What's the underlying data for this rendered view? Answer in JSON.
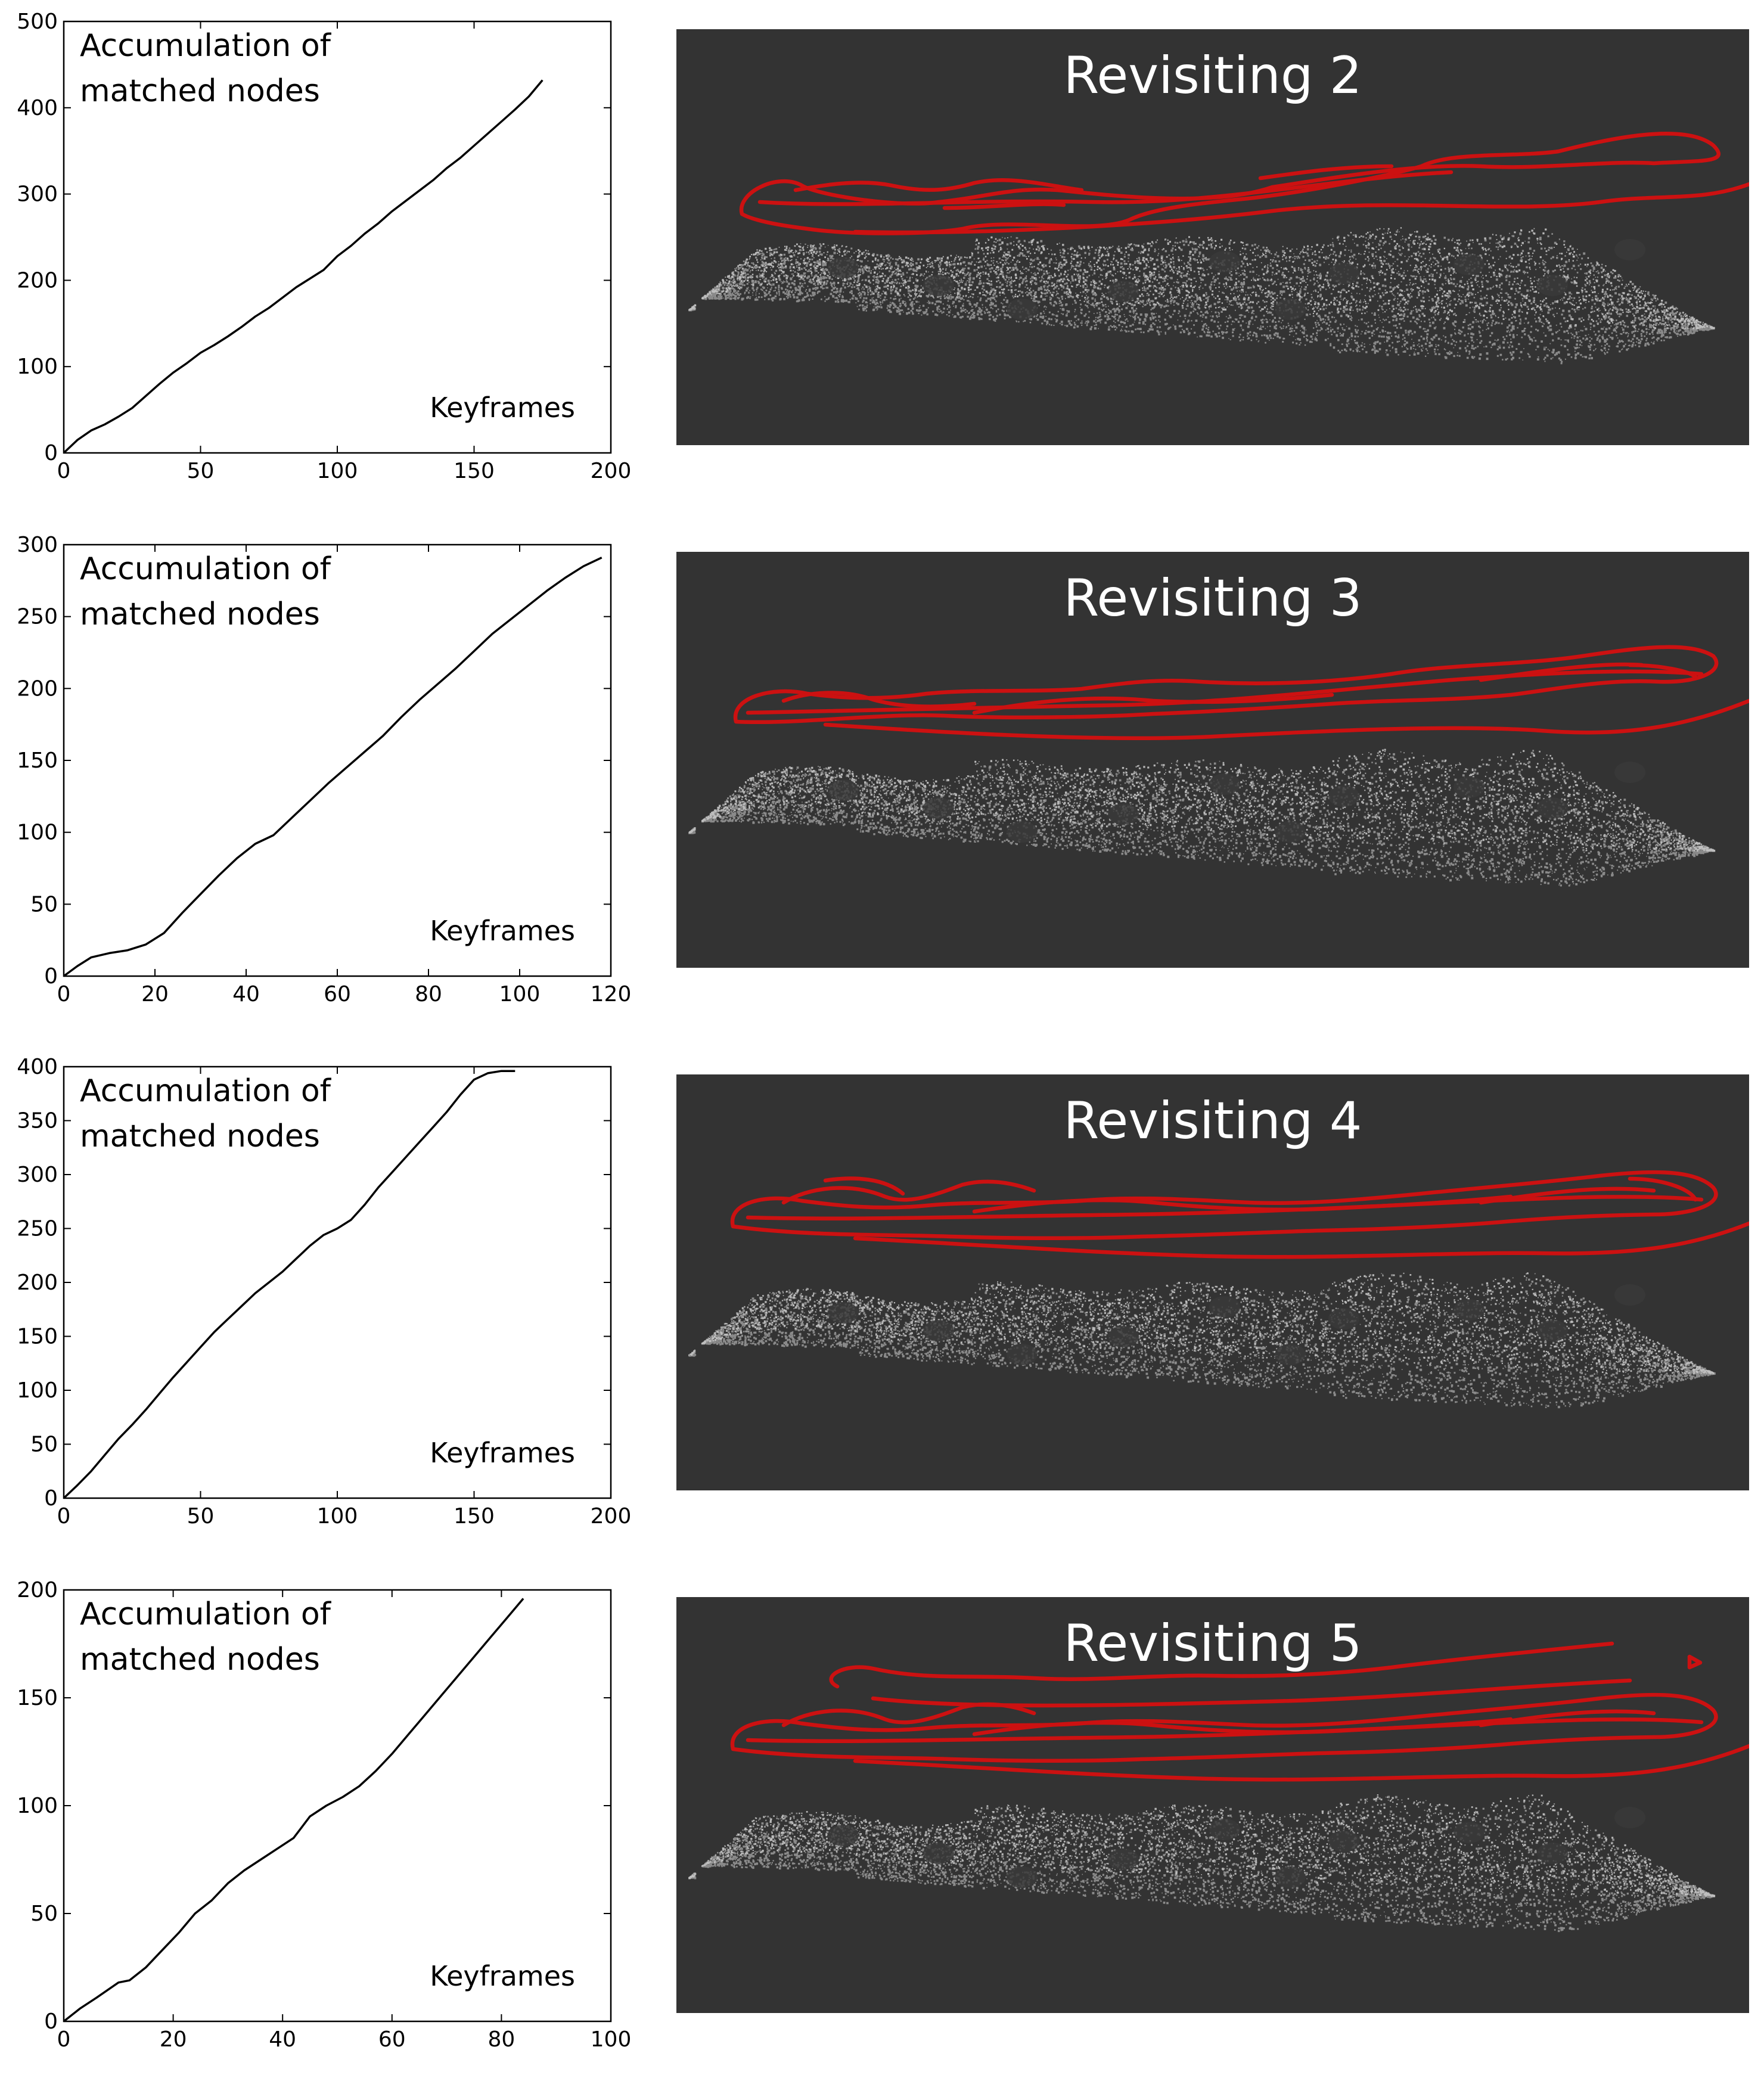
{
  "chart_data": [
    {
      "type": "line",
      "annotation_line1": "Accumulation of",
      "annotation_line2": "matched nodes",
      "xlabel": "Keyframes",
      "xlim": [
        0,
        200
      ],
      "ylim": [
        0,
        500
      ],
      "xticks": [
        0,
        50,
        100,
        150,
        200
      ],
      "yticks": [
        0,
        100,
        200,
        300,
        400,
        500
      ],
      "series": [
        {
          "color": "#000000",
          "x": [
            0,
            5,
            10,
            15,
            20,
            25,
            30,
            35,
            40,
            45,
            50,
            55,
            60,
            65,
            70,
            75,
            80,
            85,
            90,
            95,
            100,
            105,
            110,
            115,
            120,
            125,
            130,
            135,
            140,
            145,
            150,
            155,
            160,
            165,
            170,
            175
          ],
          "y": [
            0,
            15,
            26,
            33,
            42,
            52,
            66,
            80,
            93,
            104,
            116,
            125,
            135,
            146,
            158,
            168,
            180,
            192,
            202,
            212,
            228,
            240,
            254,
            266,
            280,
            292,
            304,
            316,
            330,
            342,
            356,
            370,
            384,
            398,
            413,
            432
          ]
        }
      ]
    },
    {
      "type": "line",
      "annotation_line1": "Accumulation of",
      "annotation_line2": "matched nodes",
      "xlabel": "Keyframes",
      "xlim": [
        0,
        120
      ],
      "ylim": [
        0,
        300
      ],
      "xticks": [
        0,
        20,
        40,
        60,
        80,
        100,
        120
      ],
      "yticks": [
        0,
        50,
        100,
        150,
        200,
        250,
        300
      ],
      "series": [
        {
          "color": "#000000",
          "x": [
            0,
            3,
            6,
            10,
            14,
            18,
            22,
            26,
            30,
            34,
            38,
            42,
            46,
            50,
            54,
            58,
            62,
            66,
            70,
            74,
            78,
            82,
            86,
            90,
            94,
            98,
            102,
            106,
            110,
            114,
            118
          ],
          "y": [
            0,
            7,
            13,
            16,
            18,
            22,
            30,
            44,
            57,
            70,
            82,
            92,
            98,
            110,
            122,
            134,
            145,
            156,
            167,
            180,
            192,
            203,
            214,
            226,
            238,
            248,
            258,
            268,
            277,
            285,
            291
          ]
        }
      ]
    },
    {
      "type": "line",
      "annotation_line1": "Accumulation of",
      "annotation_line2": "matched nodes",
      "xlabel": "Keyframes",
      "xlim": [
        0,
        200
      ],
      "ylim": [
        0,
        400
      ],
      "xticks": [
        0,
        50,
        100,
        150,
        200
      ],
      "yticks": [
        0,
        50,
        100,
        150,
        200,
        250,
        300,
        350,
        400
      ],
      "series": [
        {
          "color": "#000000",
          "x": [
            0,
            5,
            10,
            15,
            20,
            25,
            30,
            35,
            40,
            45,
            50,
            55,
            60,
            65,
            70,
            75,
            80,
            85,
            90,
            95,
            100,
            105,
            110,
            115,
            120,
            125,
            130,
            135,
            140,
            145,
            150,
            155,
            160,
            165
          ],
          "y": [
            0,
            12,
            25,
            40,
            55,
            68,
            82,
            97,
            112,
            126,
            140,
            154,
            166,
            178,
            190,
            200,
            210,
            222,
            234,
            244,
            250,
            258,
            272,
            288,
            302,
            316,
            330,
            344,
            358,
            374,
            388,
            394,
            396,
            396
          ]
        }
      ]
    },
    {
      "type": "line",
      "annotation_line1": "Accumulation of",
      "annotation_line2": "matched nodes",
      "xlabel": "Keyframes",
      "xlim": [
        0,
        100
      ],
      "ylim": [
        0,
        200
      ],
      "xticks": [
        0,
        20,
        40,
        60,
        80,
        100
      ],
      "yticks": [
        0,
        50,
        100,
        150,
        200
      ],
      "series": [
        {
          "color": "#000000",
          "x": [
            0,
            3,
            6,
            10,
            12,
            15,
            18,
            21,
            24,
            27,
            30,
            33,
            36,
            39,
            42,
            45,
            48,
            51,
            54,
            57,
            60,
            63,
            66,
            69,
            72,
            75,
            78,
            81,
            84
          ],
          "y": [
            0,
            6,
            11,
            18,
            19,
            25,
            33,
            41,
            50,
            56,
            64,
            70,
            75,
            80,
            85,
            95,
            100,
            104,
            109,
            116,
            124,
            133,
            142,
            151,
            160,
            169,
            178,
            187,
            196
          ]
        }
      ]
    }
  ],
  "panels": [
    {
      "title": "Revisiting 2",
      "background": "#333333",
      "trajectory_color": "#cc1111"
    },
    {
      "title": "Revisiting 3",
      "background": "#333333",
      "trajectory_color": "#cc1111"
    },
    {
      "title": "Revisiting 4",
      "background": "#333333",
      "trajectory_color": "#cc1111"
    },
    {
      "title": "Revisiting 5",
      "background": "#333333",
      "trajectory_color": "#cc1111"
    }
  ]
}
